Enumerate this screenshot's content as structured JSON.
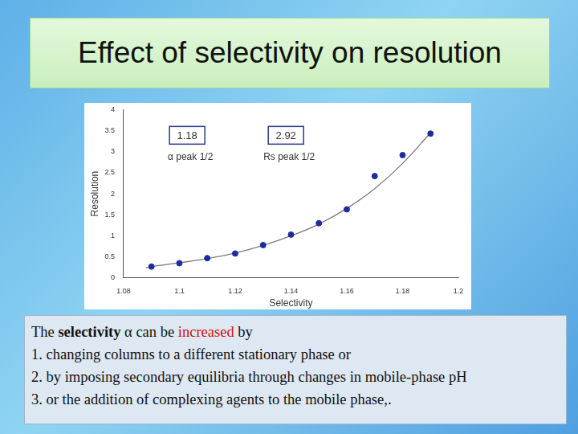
{
  "slide": {
    "title": "Effect of selectivity on resolution",
    "intro": [
      "The ",
      "selectivity",
      " α can be ",
      "increased",
      " by"
    ],
    "items": [
      "1. changing columns to a different stationary phase or",
      "2. by imposing secondary equilibria through changes in mobile-phase pH",
      "3. or the addition of complexing agents to the mobile phase,."
    ]
  },
  "chart_data": {
    "type": "scatter",
    "x_label": "Selectivity",
    "y_label": "Resolution",
    "xlim": [
      1.08,
      1.2
    ],
    "xticks": [
      1.08,
      1.1,
      1.12,
      1.14,
      1.16,
      1.18,
      1.2
    ],
    "ylim": [
      0,
      4
    ],
    "yticks": [
      0,
      0.5,
      1,
      1.5,
      2,
      2.5,
      3,
      3.5,
      4
    ],
    "grid": false,
    "series": [
      {
        "type": "scatter",
        "color": "#1c2c9c",
        "marker": "circle",
        "x": [
          1.09,
          1.1,
          1.11,
          1.12,
          1.13,
          1.14,
          1.15,
          1.16,
          1.17,
          1.18,
          1.19
        ],
        "values": [
          0.27,
          0.35,
          0.47,
          0.58,
          0.78,
          1.03,
          1.3,
          1.63,
          2.42,
          2.92,
          3.43
        ]
      },
      {
        "type": "line",
        "color": "#7a7a7a",
        "line_style": "solid",
        "x": [
          1.088,
          1.09,
          1.1,
          1.11,
          1.12,
          1.13,
          1.14,
          1.15,
          1.16,
          1.17,
          1.18,
          1.19
        ],
        "values": [
          0.24,
          0.27,
          0.36,
          0.46,
          0.59,
          0.77,
          1.0,
          1.28,
          1.65,
          2.12,
          2.72,
          3.45
        ]
      }
    ],
    "annotations": [
      {
        "value": 1.18,
        "text": "α peak 1/2"
      },
      {
        "value": 2.92,
        "text": "Rs peak 1/2"
      }
    ]
  }
}
